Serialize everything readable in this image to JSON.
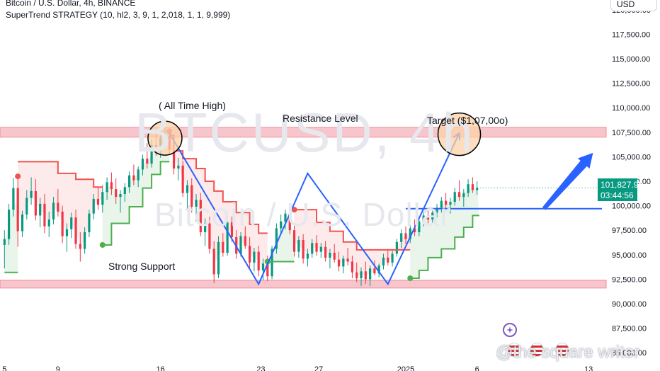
{
  "header": {
    "title": "Bitcoin / U.S. Dollar, 4h, BINANCE",
    "indicator": "SuperTrend STRATEGY (10, hl2, 3, 9, 1, 2,018, 1, 1, 9,999)",
    "currency": "USD"
  },
  "watermark": {
    "symbol": "BTCUSD, 4h",
    "name": "Bitcoin / U.S. Dollar",
    "author": "@the square writer"
  },
  "price_badge": {
    "price": "101,827.95",
    "countdown": "03:44:56"
  },
  "annotations": {
    "ath": "( All Time High)",
    "resistance": "Resistance Level",
    "target": "Target ($1,07,00o)",
    "support": "Strong Support"
  },
  "colors": {
    "zone": "#f7c6cc",
    "zone_border": "#f08a96",
    "candle_up": "#089981",
    "candle_down": "#f23645",
    "trend_up": "#4caf50",
    "trend_down": "#ef5350",
    "projection": "#2962ff",
    "badge": "#089981",
    "ath_circle_fill": "#fcd2a8"
  },
  "icons": [
    "plus-circle-icon",
    "us-flag-icon"
  ],
  "chart_data": {
    "type": "candlestick",
    "title": "Bitcoin / U.S. Dollar, 4h, BINANCE",
    "ylim": [
      84000,
      121000
    ],
    "y_ticks": [
      "120,000.00",
      "117,500.00",
      "115,000.00",
      "112,500.00",
      "110,000.00",
      "107,500.00",
      "105,000.00",
      "102,500.00",
      "100,000.00",
      "97,500.00",
      "95,000.00",
      "92,500.00",
      "90,000.00",
      "87,500.00",
      "85,000.00"
    ],
    "y_tick_values": [
      120000,
      117500,
      115000,
      112500,
      110000,
      107500,
      105000,
      102500,
      100000,
      97500,
      95000,
      92500,
      90000,
      87500,
      85000
    ],
    "x_ticks": [
      "5",
      "9",
      "16",
      "23",
      "27",
      "2025",
      "6",
      "13"
    ],
    "x_tick_positions": [
      0,
      24,
      70,
      115,
      141,
      180,
      212,
      262
    ],
    "x_range": [
      -2,
      268
    ],
    "last_price": 101827.95,
    "zones": [
      {
        "name": "Resistance Level",
        "from": 107000,
        "to": 108000
      },
      {
        "name": "Strong Support",
        "from": 91600,
        "to": 92400
      }
    ],
    "candles": [
      [
        0,
        96000,
        97500,
        93600,
        96600
      ],
      [
        2,
        96600,
        100200,
        96000,
        99600
      ],
      [
        4,
        99600,
        102800,
        98900,
        101800
      ],
      [
        6,
        101800,
        103000,
        95800,
        97400
      ],
      [
        8,
        97400,
        99500,
        96800,
        99100
      ],
      [
        10,
        99100,
        101600,
        98600,
        100800
      ],
      [
        12,
        100800,
        102900,
        100100,
        101500
      ],
      [
        14,
        101500,
        102700,
        98500,
        99000
      ],
      [
        16,
        99000,
        100800,
        97800,
        100200
      ],
      [
        18,
        100200,
        101200,
        97200,
        97900
      ],
      [
        20,
        97900,
        99400,
        96800,
        98600
      ],
      [
        22,
        98600,
        100900,
        98100,
        100300
      ],
      [
        24,
        100300,
        101700,
        98900,
        99400
      ],
      [
        26,
        99400,
        100000,
        96200,
        96900
      ],
      [
        28,
        96900,
        98200,
        95300,
        97600
      ],
      [
        30,
        97600,
        99300,
        96700,
        98800
      ],
      [
        32,
        98800,
        99600,
        95600,
        96100
      ],
      [
        34,
        96100,
        97300,
        94300,
        95600
      ],
      [
        36,
        95600,
        97800,
        95100,
        97300
      ],
      [
        38,
        97300,
        99600,
        96800,
        99200
      ],
      [
        40,
        99200,
        101200,
        98600,
        100700
      ],
      [
        42,
        100700,
        101900,
        99600,
        100100
      ],
      [
        44,
        100100,
        102100,
        99300,
        101400
      ],
      [
        46,
        101400,
        102900,
        100600,
        102400
      ],
      [
        48,
        102400,
        103400,
        101100,
        101700
      ],
      [
        50,
        101700,
        102800,
        100200,
        100900
      ],
      [
        52,
        100900,
        101600,
        99300,
        101200
      ],
      [
        54,
        101200,
        102300,
        100400,
        101900
      ],
      [
        56,
        101900,
        103500,
        101300,
        103100
      ],
      [
        58,
        103100,
        104200,
        102100,
        102600
      ],
      [
        60,
        102600,
        104000,
        101900,
        103700
      ],
      [
        62,
        103700,
        105200,
        103100,
        104800
      ],
      [
        64,
        104800,
        106400,
        103800,
        104300
      ],
      [
        66,
        104300,
        106800,
        103900,
        106200
      ],
      [
        68,
        106200,
        107700,
        105100,
        105600
      ],
      [
        70,
        105600,
        107400,
        104900,
        106900
      ],
      [
        72,
        106900,
        108200,
        106000,
        107100
      ],
      [
        74,
        107100,
        107600,
        105300,
        105700
      ],
      [
        76,
        105700,
        106500,
        103200,
        103800
      ],
      [
        78,
        103800,
        104900,
        102600,
        104100
      ],
      [
        80,
        104100,
        104600,
        100900,
        101300
      ],
      [
        82,
        101300,
        102600,
        99700,
        102100
      ],
      [
        84,
        102100,
        102800,
        99300,
        99900
      ],
      [
        86,
        99900,
        101200,
        98400,
        100600
      ],
      [
        88,
        100600,
        101300,
        96900,
        97300
      ],
      [
        90,
        97300,
        98700,
        95900,
        98200
      ],
      [
        92,
        98200,
        98900,
        95100,
        95600
      ],
      [
        94,
        95600,
        96400,
        92100,
        93000
      ],
      [
        96,
        93000,
        96900,
        92600,
        96300
      ],
      [
        98,
        96300,
        97200,
        94800,
        95200
      ],
      [
        100,
        95200,
        98700,
        94900,
        98300
      ],
      [
        102,
        98300,
        98900,
        96300,
        96800
      ],
      [
        104,
        96800,
        97500,
        94600,
        95100
      ],
      [
        106,
        95100,
        97300,
        94800,
        96900
      ],
      [
        108,
        96900,
        97900,
        95600,
        95900
      ],
      [
        110,
        95900,
        96800,
        93600,
        94200
      ],
      [
        112,
        94200,
        95700,
        93300,
        95300
      ],
      [
        114,
        95300,
        95900,
        92800,
        93400
      ],
      [
        116,
        93400,
        94600,
        92400,
        94100
      ],
      [
        118,
        94100,
        94900,
        92300,
        92800
      ],
      [
        120,
        92800,
        95900,
        92500,
        95600
      ],
      [
        122,
        95600,
        98200,
        95100,
        97700
      ],
      [
        124,
        97700,
        99100,
        97200,
        98400
      ],
      [
        126,
        98400,
        99600,
        97600,
        99200
      ],
      [
        128,
        99200,
        99900,
        97100,
        97500
      ],
      [
        130,
        97500,
        98200,
        94800,
        95300
      ],
      [
        132,
        95300,
        96900,
        94700,
        96500
      ],
      [
        134,
        96500,
        97100,
        94100,
        94600
      ],
      [
        136,
        94600,
        95600,
        93800,
        95100
      ],
      [
        138,
        95100,
        96600,
        94700,
        96200
      ],
      [
        140,
        96200,
        97000,
        94900,
        95300
      ],
      [
        142,
        95300,
        96200,
        94700,
        95800
      ],
      [
        144,
        95800,
        96400,
        94300,
        94700
      ],
      [
        146,
        94700,
        95600,
        93600,
        95200
      ],
      [
        148,
        95200,
        96100,
        94200,
        94500
      ],
      [
        150,
        94500,
        95300,
        93300,
        93800
      ],
      [
        152,
        93800,
        94900,
        93100,
        94600
      ],
      [
        154,
        94600,
        95700,
        93900,
        94300
      ],
      [
        156,
        94300,
        94900,
        92600,
        93200
      ],
      [
        158,
        93200,
        94200,
        92200,
        92600
      ],
      [
        160,
        92600,
        93700,
        91800,
        93300
      ],
      [
        162,
        93300,
        94300,
        92000,
        92500
      ],
      [
        164,
        92500,
        93900,
        91800,
        93600
      ],
      [
        166,
        93600,
        94400,
        92900,
        93100
      ],
      [
        168,
        93100,
        94100,
        92700,
        93900
      ],
      [
        170,
        93900,
        95100,
        93500,
        94700
      ],
      [
        172,
        94700,
        95600,
        93900,
        94200
      ],
      [
        174,
        94200,
        95500,
        93800,
        95100
      ],
      [
        176,
        95100,
        96600,
        94800,
        96300
      ],
      [
        178,
        96300,
        97600,
        95700,
        97200
      ],
      [
        180,
        97200,
        97900,
        96100,
        96600
      ],
      [
        182,
        96600,
        98100,
        96200,
        97700
      ],
      [
        184,
        97700,
        98600,
        96900,
        97300
      ],
      [
        186,
        97300,
        98700,
        96900,
        98400
      ],
      [
        188,
        98400,
        99400,
        97900,
        99000
      ],
      [
        190,
        99000,
        99700,
        98200,
        98600
      ],
      [
        192,
        98600,
        99600,
        98100,
        99300
      ],
      [
        194,
        99300,
        100200,
        98800,
        99800
      ],
      [
        196,
        99800,
        100900,
        99300,
        100500
      ],
      [
        198,
        100500,
        101300,
        99600,
        100100
      ],
      [
        200,
        100100,
        100800,
        99200,
        100400
      ],
      [
        202,
        100400,
        101800,
        100000,
        101400
      ],
      [
        204,
        101400,
        102600,
        100500,
        100900
      ],
      [
        206,
        100900,
        101700,
        99900,
        101300
      ],
      [
        208,
        101300,
        102700,
        100900,
        102200
      ],
      [
        210,
        102200,
        102900,
        101300,
        101600
      ],
      [
        212,
        101600,
        102500,
        101100,
        101828
      ]
    ],
    "supertrend": [
      {
        "trend": "up",
        "points": [
          [
            0,
            93200
          ],
          [
            6,
            93200
          ]
        ]
      },
      {
        "trend": "down",
        "points": [
          [
            6,
            104500
          ],
          [
            24,
            104500
          ],
          [
            24,
            103300
          ],
          [
            32,
            103300
          ],
          [
            32,
            102700
          ],
          [
            40,
            102700
          ],
          [
            40,
            101900
          ],
          [
            44,
            101900
          ]
        ]
      },
      {
        "trend": "up",
        "points": [
          [
            44,
            96000
          ],
          [
            48,
            96000
          ],
          [
            48,
            98200
          ],
          [
            56,
            98200
          ],
          [
            56,
            99900
          ],
          [
            62,
            99900
          ],
          [
            62,
            101800
          ],
          [
            66,
            101800
          ],
          [
            66,
            103200
          ],
          [
            70,
            103200
          ],
          [
            70,
            104500
          ],
          [
            74,
            104500
          ]
        ]
      },
      {
        "trend": "down",
        "points": [
          [
            74,
            107200
          ],
          [
            76,
            107200
          ],
          [
            76,
            105600
          ],
          [
            80,
            105600
          ],
          [
            80,
            104800
          ],
          [
            86,
            104800
          ],
          [
            86,
            103800
          ],
          [
            90,
            103800
          ],
          [
            90,
            102500
          ],
          [
            94,
            102500
          ],
          [
            94,
            101500
          ],
          [
            98,
            101500
          ],
          [
            98,
            100400
          ],
          [
            104,
            100400
          ],
          [
            104,
            99300
          ],
          [
            110,
            99300
          ],
          [
            110,
            98100
          ],
          [
            114,
            98100
          ],
          [
            114,
            97200
          ],
          [
            118,
            97200
          ]
        ]
      },
      {
        "trend": "up",
        "points": [
          [
            118,
            94300
          ],
          [
            130,
            94300
          ]
        ]
      },
      {
        "trend": "down",
        "points": [
          [
            130,
            99600
          ],
          [
            140,
            99600
          ],
          [
            140,
            98300
          ],
          [
            146,
            98300
          ],
          [
            146,
            97400
          ],
          [
            152,
            97400
          ],
          [
            152,
            96300
          ],
          [
            158,
            96300
          ],
          [
            158,
            95500
          ],
          [
            182,
            95500
          ]
        ]
      },
      {
        "trend": "up",
        "points": [
          [
            182,
            92600
          ],
          [
            186,
            92600
          ],
          [
            186,
            93400
          ],
          [
            190,
            93400
          ],
          [
            190,
            94700
          ],
          [
            196,
            94700
          ],
          [
            196,
            95600
          ],
          [
            202,
            95600
          ],
          [
            202,
            96800
          ],
          [
            206,
            96800
          ],
          [
            206,
            97800
          ],
          [
            210,
            97800
          ],
          [
            210,
            99000
          ],
          [
            213,
            99000
          ]
        ]
      }
    ],
    "signals": [
      {
        "t": 6,
        "price": 103000,
        "type": "sell"
      },
      {
        "t": 44,
        "price": 96000,
        "type": "buy"
      },
      {
        "t": 74,
        "price": 107600,
        "type": "sell"
      },
      {
        "t": 118,
        "price": 94300,
        "type": "buy"
      },
      {
        "t": 130,
        "price": 99600,
        "type": "sell"
      },
      {
        "t": 182,
        "price": 92600,
        "type": "buy"
      }
    ],
    "projection_path": [
      [
        74,
        107400
      ],
      [
        114,
        92000
      ],
      [
        136,
        103300
      ],
      [
        172,
        92000
      ],
      [
        204,
        107400
      ]
    ],
    "horizontal_level": {
      "from": 180,
      "to": 268,
      "price": 99700
    }
  }
}
